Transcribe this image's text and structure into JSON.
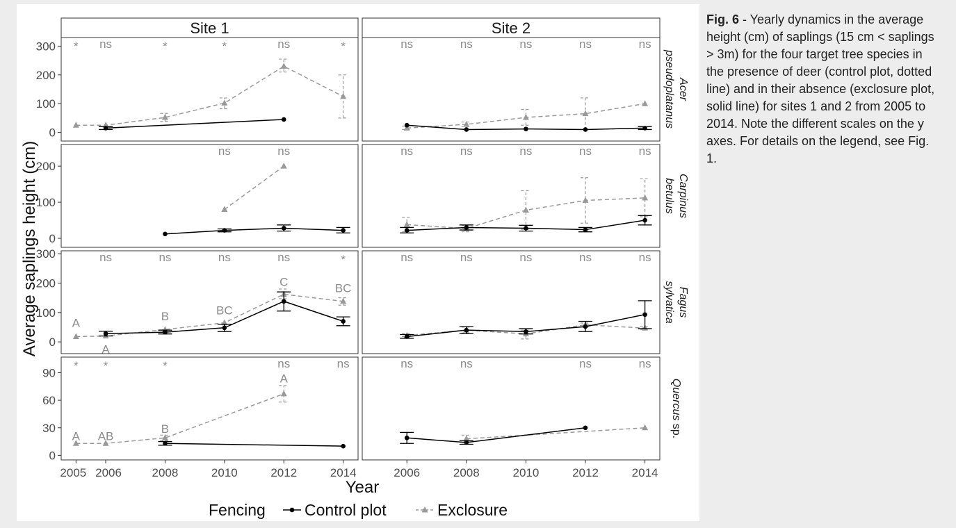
{
  "caption": {
    "label": "Fig. 6",
    "text": " - Yearly dynamics in the average height (cm) of saplings (15 cm < saplings > 3m) for the four target tree species in the presence of deer (control plot, dotted line) and in their absence (exclosure plot, solid line) for sites 1 and 2 from 2005 to 2014. Note the different scales on the y axes. For details on the legend, see Fig. 1."
  },
  "colors": {
    "control": "#000000",
    "exclosure": "#999999",
    "panel_border": "#333333",
    "strip_bg": "#ffffff",
    "annotation": "#8c8c8c",
    "axis_text": "#4d4d4d"
  },
  "chart_data": {
    "type": "line",
    "xlabel": "Year",
    "ylabel": "Average saplings height (cm)",
    "legend": {
      "title": "Fencing",
      "position": "bottom",
      "entries": [
        "Control plot",
        "Exclosure"
      ]
    },
    "sites": [
      "Site 1",
      "Site 2"
    ],
    "species": [
      {
        "label": "Acer\npseudoplatanus",
        "italic": true,
        "ylim": [
          -30,
          330
        ],
        "yticks": [
          0,
          100,
          200,
          300
        ]
      },
      {
        "label": "Carpinus\nbetulus",
        "italic": true,
        "ylim": [
          -25,
          260
        ],
        "yticks": [
          0,
          100,
          200
        ]
      },
      {
        "label": "Fagus\nsylvatica",
        "italic": true,
        "ylim": [
          -40,
          310
        ],
        "yticks": [
          0,
          100,
          200,
          300
        ]
      },
      {
        "label": "Quercus sp.",
        "italic_part": "Quercus",
        "plain_part": " sp.",
        "ylim": [
          -5,
          107
        ],
        "yticks": [
          0,
          30,
          60,
          90
        ]
      }
    ],
    "xticks": {
      "Site 1": [
        "2005",
        "2006",
        "2008",
        "2010",
        "2012",
        "2014"
      ],
      "Site 2": [
        "2006",
        "2008",
        "2010",
        "2012",
        "2014"
      ]
    },
    "xlim": [
      2004.5,
      2014.5
    ],
    "panels": [
      {
        "site": "Site 1",
        "species": 0,
        "control": [
          {
            "x": 2006,
            "y": 15,
            "lo": 10,
            "hi": 20
          },
          {
            "x": 2012,
            "y": 45
          }
        ],
        "exclosure": [
          {
            "x": 2005,
            "y": 25
          },
          {
            "x": 2006,
            "y": 25
          },
          {
            "x": 2008,
            "y": 52,
            "lo": 38,
            "hi": 66
          },
          {
            "x": 2010,
            "y": 102,
            "lo": 82,
            "hi": 120
          },
          {
            "x": 2012,
            "y": 230,
            "lo": 210,
            "hi": 255
          },
          {
            "x": 2014,
            "y": 125,
            "lo": 50,
            "hi": 200
          }
        ],
        "sig": [
          {
            "x": 2005,
            "t": "*"
          },
          {
            "x": 2006,
            "t": "ns"
          },
          {
            "x": 2008,
            "t": "*"
          },
          {
            "x": 2010,
            "t": "*"
          },
          {
            "x": 2012,
            "t": "ns"
          },
          {
            "x": 2014,
            "t": "*"
          }
        ],
        "letters": []
      },
      {
        "site": "Site 2",
        "species": 0,
        "control": [
          {
            "x": 2006,
            "y": 25
          },
          {
            "x": 2008,
            "y": 10
          },
          {
            "x": 2010,
            "y": 12
          },
          {
            "x": 2012,
            "y": 10
          },
          {
            "x": 2014,
            "y": 15,
            "lo": 10,
            "hi": 20
          }
        ],
        "exclosure": [
          {
            "x": 2006,
            "y": 15,
            "lo": 10,
            "hi": 22
          },
          {
            "x": 2008,
            "y": 28,
            "lo": 20,
            "hi": 36
          },
          {
            "x": 2010,
            "y": 52,
            "lo": 25,
            "hi": 80
          },
          {
            "x": 2012,
            "y": 65,
            "lo": 10,
            "hi": 120
          },
          {
            "x": 2014,
            "y": 100
          }
        ],
        "sig": [
          {
            "x": 2006,
            "t": "ns"
          },
          {
            "x": 2008,
            "t": "ns"
          },
          {
            "x": 2010,
            "t": "ns"
          },
          {
            "x": 2012,
            "t": "ns"
          },
          {
            "x": 2014,
            "t": "ns"
          }
        ],
        "letters": []
      },
      {
        "site": "Site 1",
        "species": 1,
        "control": [
          {
            "x": 2008,
            "y": 12
          },
          {
            "x": 2010,
            "y": 22,
            "lo": 18,
            "hi": 26
          },
          {
            "x": 2012,
            "y": 28,
            "lo": 20,
            "hi": 37
          },
          {
            "x": 2014,
            "y": 22,
            "lo": 15,
            "hi": 30
          }
        ],
        "exclosure": [
          {
            "x": 2010,
            "y": 80
          },
          {
            "x": 2012,
            "y": 200
          }
        ],
        "sig": [
          {
            "x": 2010,
            "t": "ns"
          },
          {
            "x": 2012,
            "t": "ns"
          }
        ],
        "letters": []
      },
      {
        "site": "Site 2",
        "species": 1,
        "control": [
          {
            "x": 2006,
            "y": 22,
            "lo": 15,
            "hi": 30
          },
          {
            "x": 2008,
            "y": 30,
            "lo": 23,
            "hi": 37
          },
          {
            "x": 2010,
            "y": 28,
            "lo": 20,
            "hi": 36
          },
          {
            "x": 2012,
            "y": 24,
            "lo": 18,
            "hi": 30
          },
          {
            "x": 2014,
            "y": 50,
            "lo": 37,
            "hi": 63
          }
        ],
        "exclosure": [
          {
            "x": 2006,
            "y": 38,
            "lo": 18,
            "hi": 58
          },
          {
            "x": 2008,
            "y": 27,
            "lo": 18,
            "hi": 36
          },
          {
            "x": 2010,
            "y": 78,
            "lo": 25,
            "hi": 132
          },
          {
            "x": 2012,
            "y": 105,
            "lo": 42,
            "hi": 168
          },
          {
            "x": 2014,
            "y": 112,
            "lo": 60,
            "hi": 165
          }
        ],
        "sig": [
          {
            "x": 2006,
            "t": "ns"
          },
          {
            "x": 2008,
            "t": "ns"
          },
          {
            "x": 2010,
            "t": "ns"
          },
          {
            "x": 2012,
            "t": "ns"
          },
          {
            "x": 2014,
            "t": "ns"
          }
        ],
        "letters": []
      },
      {
        "site": "Site 1",
        "species": 2,
        "control": [
          {
            "x": 2006,
            "y": 28,
            "lo": 20,
            "hi": 36
          },
          {
            "x": 2008,
            "y": 33,
            "lo": 27,
            "hi": 40
          },
          {
            "x": 2010,
            "y": 48,
            "lo": 35,
            "hi": 60
          },
          {
            "x": 2012,
            "y": 138,
            "lo": 105,
            "hi": 170
          },
          {
            "x": 2014,
            "y": 70,
            "lo": 55,
            "hi": 85
          }
        ],
        "exclosure": [
          {
            "x": 2005,
            "y": 18
          },
          {
            "x": 2006,
            "y": 20
          },
          {
            "x": 2008,
            "y": 42
          },
          {
            "x": 2010,
            "y": 65
          },
          {
            "x": 2012,
            "y": 162,
            "lo": 147,
            "hi": 180
          },
          {
            "x": 2014,
            "y": 138,
            "lo": 125,
            "hi": 150
          }
        ],
        "sig": [
          {
            "x": 2006,
            "t": "ns"
          },
          {
            "x": 2008,
            "t": "ns"
          },
          {
            "x": 2010,
            "t": "ns"
          },
          {
            "x": 2012,
            "t": "ns"
          },
          {
            "x": 2014,
            "t": "*"
          }
        ],
        "letters": [
          {
            "x": 2005,
            "y": 65,
            "t": "A"
          },
          {
            "x": 2006,
            "y": -25,
            "t": "A"
          },
          {
            "x": 2008,
            "y": 88,
            "t": "B"
          },
          {
            "x": 2010,
            "y": 108,
            "t": "BC"
          },
          {
            "x": 2012,
            "y": 205,
            "t": "C"
          },
          {
            "x": 2014,
            "y": 183,
            "t": "BC"
          }
        ]
      },
      {
        "site": "Site 2",
        "species": 2,
        "control": [
          {
            "x": 2006,
            "y": 18,
            "lo": 12,
            "hi": 25
          },
          {
            "x": 2008,
            "y": 40,
            "lo": 28,
            "hi": 52
          },
          {
            "x": 2010,
            "y": 35,
            "lo": 27,
            "hi": 45
          },
          {
            "x": 2012,
            "y": 52,
            "lo": 35,
            "hi": 70
          },
          {
            "x": 2014,
            "y": 93,
            "lo": 45,
            "hi": 140
          }
        ],
        "exclosure": [
          {
            "x": 2006,
            "y": 22,
            "lo": 18,
            "hi": 28
          },
          {
            "x": 2008,
            "y": 40,
            "lo": 30,
            "hi": 50
          },
          {
            "x": 2010,
            "y": 27,
            "lo": 10,
            "hi": 40
          },
          {
            "x": 2012,
            "y": 58,
            "lo": 50,
            "hi": 64
          },
          {
            "x": 2014,
            "y": 47,
            "lo": 42,
            "hi": 52
          }
        ],
        "sig": [
          {
            "x": 2006,
            "t": "ns"
          },
          {
            "x": 2008,
            "t": "ns"
          },
          {
            "x": 2010,
            "t": "ns"
          },
          {
            "x": 2012,
            "t": "ns"
          },
          {
            "x": 2014,
            "t": "ns"
          }
        ],
        "letters": []
      },
      {
        "site": "Site 1",
        "species": 3,
        "control": [
          {
            "x": 2008,
            "y": 13,
            "lo": 11,
            "hi": 15
          },
          {
            "x": 2014,
            "y": 10
          }
        ],
        "exclosure": [
          {
            "x": 2005,
            "y": 13
          },
          {
            "x": 2006,
            "y": 13
          },
          {
            "x": 2008,
            "y": 19,
            "lo": 16,
            "hi": 22
          },
          {
            "x": 2012,
            "y": 67,
            "lo": 58,
            "hi": 76
          }
        ],
        "sig": [
          {
            "x": 2005,
            "t": "*"
          },
          {
            "x": 2006,
            "t": "*"
          },
          {
            "x": 2008,
            "t": "*"
          },
          {
            "x": 2012,
            "t": "ns"
          },
          {
            "x": 2014,
            "t": "ns"
          }
        ],
        "letters": [
          {
            "x": 2005,
            "y": 21,
            "t": "A"
          },
          {
            "x": 2006,
            "y": 21,
            "t": "AB"
          },
          {
            "x": 2008,
            "y": 29,
            "t": "B"
          },
          {
            "x": 2012,
            "y": 84,
            "t": "A"
          }
        ]
      },
      {
        "site": "Site 2",
        "species": 3,
        "control": [
          {
            "x": 2006,
            "y": 19,
            "lo": 13,
            "hi": 25
          },
          {
            "x": 2008,
            "y": 14,
            "lo": 12,
            "hi": 16
          },
          {
            "x": 2012,
            "y": 30
          }
        ],
        "exclosure": [
          {
            "x": 2008,
            "y": 18,
            "lo": 14,
            "hi": 22
          },
          {
            "x": 2014,
            "y": 30
          }
        ],
        "sig": [
          {
            "x": 2006,
            "t": "ns"
          },
          {
            "x": 2008,
            "t": "ns"
          },
          {
            "x": 2012,
            "t": "ns"
          },
          {
            "x": 2014,
            "t": "ns"
          }
        ],
        "letters": []
      }
    ]
  }
}
